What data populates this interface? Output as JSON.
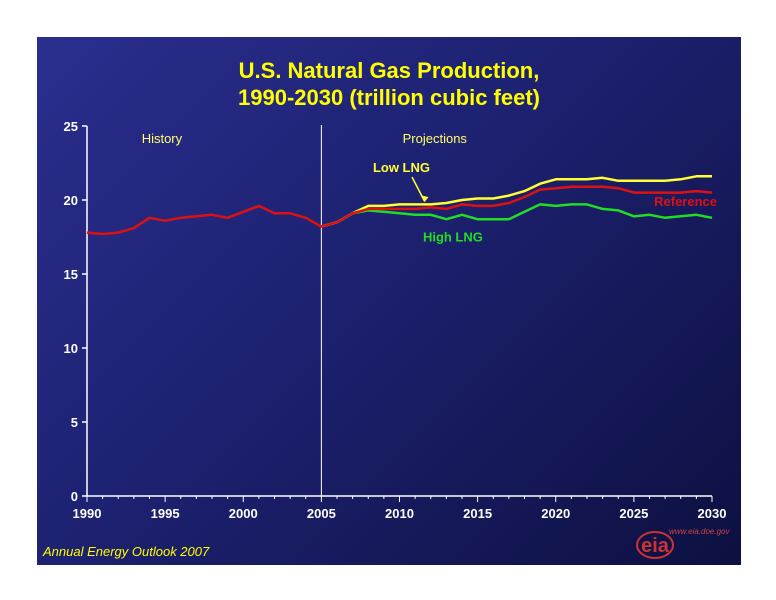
{
  "slide": {
    "title_line1": "U.S. Natural Gas Production,",
    "title_line2": "1990-2030 (trillion cubic feet)",
    "footer": "Annual Energy Outlook 2007",
    "logo_text": "eia",
    "url": "www.eia.doe.gov"
  },
  "chart_data": {
    "type": "line",
    "title": "U.S. Natural Gas Production, 1990-2030 (trillion cubic feet)",
    "xlim": [
      1990,
      2030
    ],
    "ylim": [
      0,
      25
    ],
    "x_ticks": [
      "1990",
      "1995",
      "2000",
      "2005",
      "2010",
      "2015",
      "2020",
      "2025",
      "2030"
    ],
    "y_ticks": [
      "0",
      "5",
      "10",
      "15",
      "20",
      "25"
    ],
    "grid": false,
    "divider_year": 2005,
    "annotations": {
      "history": "History",
      "projections": "Projections"
    },
    "series": [
      {
        "name": "Reference",
        "color": "#dd1111",
        "x": [
          1990,
          1991,
          1992,
          1993,
          1994,
          1995,
          1996,
          1997,
          1998,
          1999,
          2000,
          2001,
          2002,
          2003,
          2004,
          2005,
          2006,
          2007,
          2008,
          2009,
          2010,
          2011,
          2012,
          2013,
          2014,
          2015,
          2016,
          2017,
          2018,
          2019,
          2020,
          2021,
          2022,
          2023,
          2024,
          2025,
          2026,
          2027,
          2028,
          2029,
          2030
        ],
        "values": [
          17.8,
          17.7,
          17.8,
          18.1,
          18.8,
          18.6,
          18.8,
          18.9,
          19.0,
          18.8,
          19.2,
          19.6,
          19.1,
          19.1,
          18.8,
          18.2,
          18.5,
          19.1,
          19.4,
          19.4,
          19.4,
          19.4,
          19.5,
          19.4,
          19.7,
          19.6,
          19.6,
          19.8,
          20.2,
          20.7,
          20.8,
          20.9,
          20.9,
          20.9,
          20.8,
          20.5,
          20.5,
          20.5,
          20.5,
          20.6,
          20.5
        ]
      },
      {
        "name": "Low LNG",
        "color": "#ffff33",
        "x": [
          2005,
          2006,
          2007,
          2008,
          2009,
          2010,
          2011,
          2012,
          2013,
          2014,
          2015,
          2016,
          2017,
          2018,
          2019,
          2020,
          2021,
          2022,
          2023,
          2024,
          2025,
          2026,
          2027,
          2028,
          2029,
          2030
        ],
        "values": [
          18.2,
          18.5,
          19.1,
          19.6,
          19.6,
          19.7,
          19.7,
          19.7,
          19.8,
          20.0,
          20.1,
          20.1,
          20.3,
          20.6,
          21.1,
          21.4,
          21.4,
          21.4,
          21.5,
          21.3,
          21.3,
          21.3,
          21.3,
          21.4,
          21.6,
          21.6
        ]
      },
      {
        "name": "High LNG",
        "color": "#22dd22",
        "x": [
          2005,
          2006,
          2007,
          2008,
          2009,
          2010,
          2011,
          2012,
          2013,
          2014,
          2015,
          2016,
          2017,
          2018,
          2019,
          2020,
          2021,
          2022,
          2023,
          2024,
          2025,
          2026,
          2027,
          2028,
          2029,
          2030
        ],
        "values": [
          18.2,
          18.5,
          19.1,
          19.3,
          19.2,
          19.1,
          19.0,
          19.0,
          18.7,
          19.0,
          18.7,
          18.7,
          18.7,
          19.2,
          19.7,
          19.6,
          19.7,
          19.7,
          19.4,
          19.3,
          18.9,
          19.0,
          18.8,
          18.9,
          19.0,
          18.8
        ]
      }
    ]
  }
}
